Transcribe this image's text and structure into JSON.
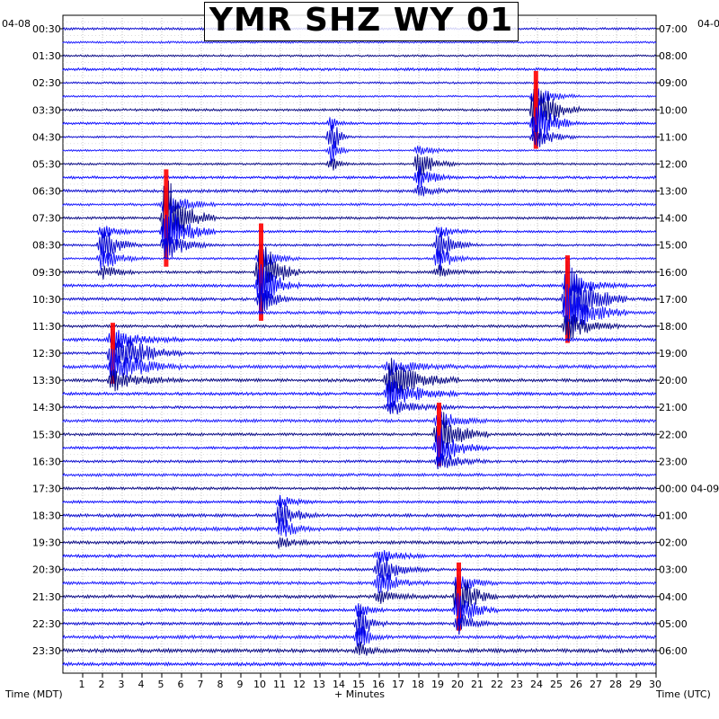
{
  "chart_data": {
    "type": "helicorder",
    "title": "YMR SHZ WY 01",
    "start_date_left": "04-08",
    "start_date_right": "04-0",
    "xlabel": "+ Minutes",
    "left_axis_label": "Time (MDT)",
    "right_axis_label": "Time (UTC)",
    "x_ticks": [
      "1",
      "2",
      "3",
      "4",
      "5",
      "6",
      "7",
      "8",
      "9",
      "10",
      "11",
      "12",
      "13",
      "14",
      "15",
      "16",
      "17",
      "18",
      "19",
      "20",
      "21",
      "22",
      "23",
      "24",
      "25",
      "26",
      "27",
      "28",
      "29",
      "30"
    ],
    "xlim": [
      0,
      30
    ],
    "left_time_labels": [
      "00:30",
      "01:30",
      "02:30",
      "03:30",
      "04:30",
      "05:30",
      "06:30",
      "07:30",
      "08:30",
      "09:30",
      "10:30",
      "11:30",
      "12:30",
      "13:30",
      "14:30",
      "15:30",
      "16:30",
      "17:30",
      "18:30",
      "19:30",
      "20:30",
      "21:30",
      "22:30",
      "23:30"
    ],
    "right_time_labels": [
      "07:00",
      "08:00",
      "09:00",
      "10:00",
      "11:00",
      "12:00",
      "13:00",
      "14:00",
      "15:00",
      "16:00",
      "17:00",
      "18:00",
      "19:00",
      "20:00",
      "21:00",
      "22:00",
      "23:00",
      "00:00 04-09",
      "01:00",
      "02:00",
      "03:00",
      "04:00",
      "05:00",
      "06:00"
    ],
    "trace_colors": [
      "#0000cc",
      "#1111ff",
      "#000080",
      "#0000ff"
    ],
    "clip_color": "#ff0000",
    "grid": true,
    "events": [
      {
        "row": 3,
        "minute": 23.9,
        "amplitude": 3.2,
        "duration": 1.8
      },
      {
        "row": 4,
        "minute": 13.6,
        "amplitude": 1.8,
        "duration": 0.6
      },
      {
        "row": 5,
        "minute": 18.0,
        "amplitude": 1.4,
        "duration": 1.5
      },
      {
        "row": 7,
        "minute": 5.2,
        "amplitude": 4.0,
        "duration": 2.0
      },
      {
        "row": 8,
        "minute": 2.0,
        "amplitude": 1.8,
        "duration": 1.6
      },
      {
        "row": 8,
        "minute": 19.0,
        "amplitude": 1.6,
        "duration": 1.5
      },
      {
        "row": 9,
        "minute": 10.0,
        "amplitude": 4.0,
        "duration": 1.5
      },
      {
        "row": 10,
        "minute": 25.5,
        "amplitude": 3.6,
        "duration": 2.5
      },
      {
        "row": 12,
        "minute": 2.5,
        "amplitude": 2.5,
        "duration": 3.0
      },
      {
        "row": 13,
        "minute": 16.5,
        "amplitude": 2.0,
        "duration": 3.0
      },
      {
        "row": 15,
        "minute": 19.0,
        "amplitude": 2.6,
        "duration": 2.0
      },
      {
        "row": 18,
        "minute": 11.0,
        "amplitude": 1.5,
        "duration": 1.5
      },
      {
        "row": 20,
        "minute": 16.0,
        "amplitude": 1.6,
        "duration": 2.0
      },
      {
        "row": 21,
        "minute": 20.0,
        "amplitude": 2.8,
        "duration": 1.5
      },
      {
        "row": 22,
        "minute": 15.0,
        "amplitude": 2.0,
        "duration": 1.0
      }
    ]
  }
}
